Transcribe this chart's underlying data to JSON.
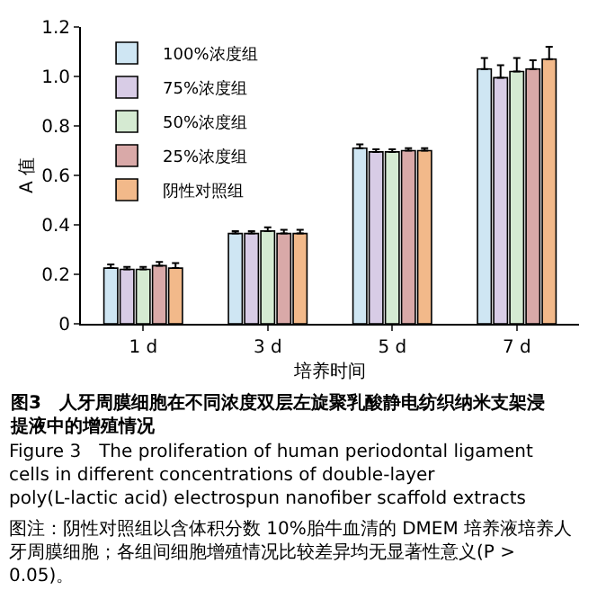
{
  "chart_data": {
    "type": "bar",
    "xlabel": "培养时间",
    "ylabel": "A 值",
    "categories": [
      "1 d",
      "3 d",
      "5 d",
      "7 d"
    ],
    "series": [
      {
        "name": "100%浓度组",
        "color": "#cfe6f3",
        "values": [
          0.225,
          0.365,
          0.71,
          1.03
        ],
        "errors": [
          [
            0.225,
            0.24
          ],
          [
            0.365,
            0.375
          ],
          [
            0.71,
            0.725
          ],
          [
            1.03,
            1.075
          ]
        ]
      },
      {
        "name": "75%浓度组",
        "color": "#d8cce6",
        "values": [
          0.22,
          0.365,
          0.695,
          0.995
        ],
        "errors": [
          [
            0.22,
            0.23
          ],
          [
            0.365,
            0.375
          ],
          [
            0.695,
            0.705
          ],
          [
            0.995,
            1.045
          ]
        ]
      },
      {
        "name": "50%浓度组",
        "color": "#d5ead2",
        "values": [
          0.22,
          0.375,
          0.695,
          1.02
        ],
        "errors": [
          [
            0.22,
            0.23
          ],
          [
            0.375,
            0.39
          ],
          [
            0.695,
            0.705
          ],
          [
            1.02,
            1.075
          ]
        ]
      },
      {
        "name": "25%浓度组",
        "color": "#d9a9a8",
        "values": [
          0.235,
          0.365,
          0.7,
          1.03
        ],
        "errors": [
          [
            0.235,
            0.25
          ],
          [
            0.365,
            0.38
          ],
          [
            0.7,
            0.71
          ],
          [
            1.03,
            1.065
          ]
        ]
      },
      {
        "name": "阴性对照组",
        "color": "#f2b98a",
        "values": [
          0.225,
          0.365,
          0.7,
          1.07
        ],
        "errors": [
          [
            0.225,
            0.245
          ],
          [
            0.365,
            0.38
          ],
          [
            0.7,
            0.71
          ],
          [
            1.07,
            1.12
          ]
        ]
      }
    ],
    "ylim": [
      0,
      1.2
    ],
    "yticks": [
      {
        "value": 0,
        "label": "0"
      },
      {
        "value": 0.2,
        "label": "0.2"
      },
      {
        "value": 0.4,
        "label": "0.4"
      },
      {
        "value": 0.6,
        "label": "0.6"
      },
      {
        "value": 0.8,
        "label": "0.8"
      },
      {
        "value": 1.0,
        "label": "1.0"
      },
      {
        "value": 1.2,
        "label": "1.2"
      }
    ],
    "legend": "top left",
    "annotations": [
      "图3　人牙周膜细胞在不同浓度双层左旋聚乳酸静电纺织纳米支架浸提液中的增殖情况",
      "Figure 3　The proliferation of human periodontal ligament cells in different concentrations of double-layer poly(L-lactic acid) electrospun nanofiber scaffold extracts",
      "图注：阴性对照组以含体积分数 10%胎牛血清的 DMEM 培养液培养人牙周膜细胞；各组间细胞增殖情况比较差异均无显著性意义(P > 0.05)。"
    ]
  }
}
